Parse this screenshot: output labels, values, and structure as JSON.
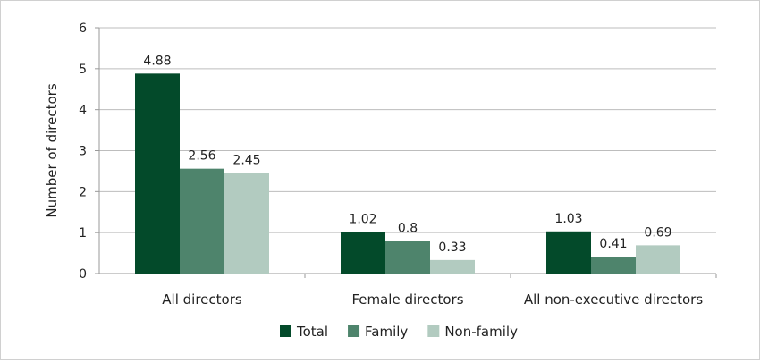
{
  "chart_data": {
    "type": "bar",
    "categories": [
      "All directors",
      "Female directors",
      "All non-executive directors"
    ],
    "series": [
      {
        "name": "Total",
        "values": [
          4.88,
          1.02,
          1.03
        ],
        "color": "#034a2a"
      },
      {
        "name": "Family",
        "values": [
          2.56,
          0.8,
          0.41
        ],
        "color": "#4e846c"
      },
      {
        "name": "Non-family",
        "values": [
          2.45,
          0.33,
          0.69
        ],
        "color": "#b2cbc0"
      }
    ],
    "data_labels": [
      [
        "4.88",
        "1.02",
        "1.03"
      ],
      [
        "2.56",
        "0.8",
        "0.41"
      ],
      [
        "2.45",
        "0.33",
        "0.69"
      ]
    ],
    "ylabel": "Number of directors",
    "xlabel": "",
    "ylim": [
      0,
      6
    ],
    "yticks": [
      "0",
      "1",
      "2",
      "3",
      "4",
      "5",
      "6"
    ],
    "grid": true,
    "legend_position": "bottom"
  }
}
